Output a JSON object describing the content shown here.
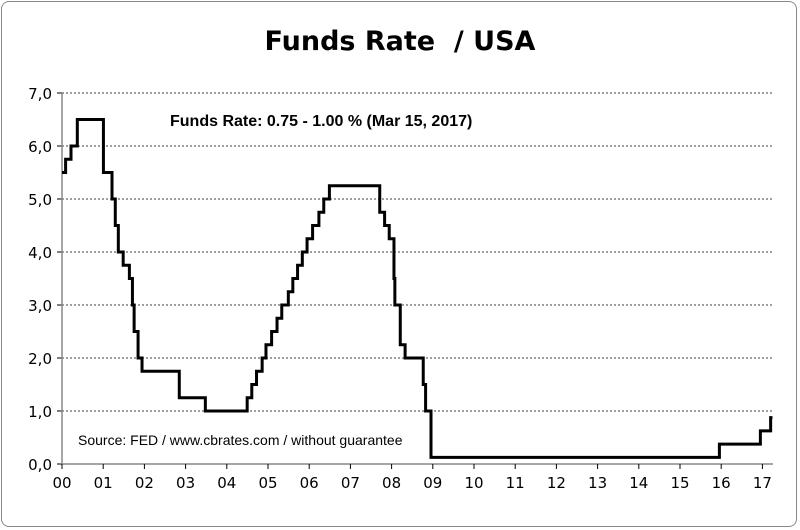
{
  "chart_data": {
    "type": "line",
    "step": true,
    "title": "Funds Rate  / USA",
    "annotation": "Funds Rate: 0.75 - 1.00 % (Mar 15, 2017)",
    "source_note": "Source: FED / www.cbrates.com / without guarantee",
    "xlabel": "",
    "ylabel": "",
    "ylim": [
      0,
      7
    ],
    "xlim": [
      "2000-01-01",
      "2017-06-01"
    ],
    "grid": "horizontal dashed",
    "legend": "none",
    "line_color": "#000000",
    "y_ticks": [
      "0,0",
      "1,0",
      "2,0",
      "3,0",
      "4,0",
      "5,0",
      "6,0",
      "7,0"
    ],
    "y_tick_values": [
      0,
      1,
      2,
      3,
      4,
      5,
      6,
      7
    ],
    "x_ticks": [
      "00",
      "01",
      "02",
      "03",
      "04",
      "05",
      "06",
      "07",
      "08",
      "09",
      "10",
      "11",
      "12",
      "13",
      "14",
      "15",
      "16",
      "17"
    ],
    "x": [
      "2000-01-01",
      "2000-02-02",
      "2000-03-21",
      "2000-05-16",
      "2001-01-03",
      "2001-01-31",
      "2001-03-20",
      "2001-04-18",
      "2001-05-15",
      "2001-06-27",
      "2001-08-21",
      "2001-09-17",
      "2001-10-02",
      "2001-11-06",
      "2001-12-11",
      "2002-11-06",
      "2003-06-25",
      "2004-06-30",
      "2004-08-10",
      "2004-09-21",
      "2004-11-10",
      "2004-12-14",
      "2005-02-02",
      "2005-03-22",
      "2005-05-03",
      "2005-06-30",
      "2005-08-09",
      "2005-09-20",
      "2005-11-01",
      "2005-12-13",
      "2006-01-31",
      "2006-03-28",
      "2006-05-10",
      "2006-06-29",
      "2007-09-18",
      "2007-10-31",
      "2007-12-11",
      "2008-01-22",
      "2008-01-30",
      "2008-03-18",
      "2008-04-30",
      "2008-10-08",
      "2008-10-29",
      "2008-12-16",
      "2015-12-16",
      "2016-12-14",
      "2017-03-15",
      "2017-03-31"
    ],
    "y": [
      5.5,
      5.75,
      6.0,
      6.5,
      5.5,
      5.5,
      5.0,
      4.5,
      4.0,
      3.75,
      3.5,
      3.0,
      2.5,
      2.0,
      1.75,
      1.25,
      1.0,
      1.25,
      1.5,
      1.75,
      2.0,
      2.25,
      2.5,
      2.75,
      3.0,
      3.25,
      3.5,
      3.75,
      4.0,
      4.25,
      4.5,
      4.75,
      5.0,
      5.25,
      4.75,
      4.5,
      4.25,
      3.5,
      3.0,
      2.25,
      2.0,
      1.5,
      1.0,
      0.125,
      0.375,
      0.625,
      0.875,
      0.875
    ]
  }
}
